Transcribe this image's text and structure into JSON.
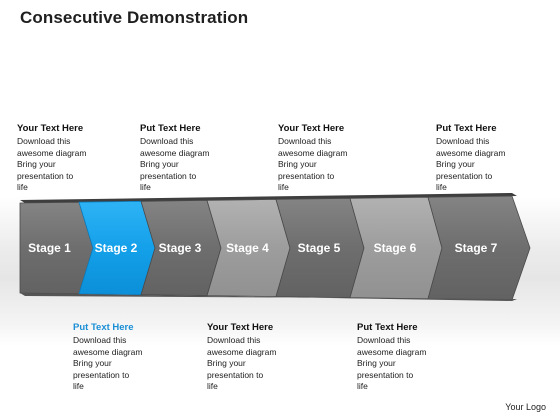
{
  "title": "Consecutive Demonstration",
  "stages": [
    "Stage 1",
    "Stage 2",
    "Stage 3",
    "Stage 4",
    "Stage 5",
    "Stage 6",
    "Stage 7"
  ],
  "top_blocks": [
    {
      "heading": "Your Text Here",
      "body": "Download this\nawesome diagram\nBring your\npresentation to\nlife"
    },
    {
      "heading": "Put Text Here",
      "body": "Download this\nawesome diagram\nBring your\npresentation to\nlife"
    },
    {
      "heading": "Your Text Here",
      "body": "Download this\nawesome diagram\nBring your\npresentation to\nlife"
    },
    {
      "heading": "Put Text Here",
      "body": "Download this\nawesome diagram\nBring your\npresentation to\nlife"
    }
  ],
  "bottom_blocks": [
    {
      "heading": "Put Text Here",
      "body": "Download this\nawesome diagram\nBring your\npresentation to\nlife"
    },
    {
      "heading": "Your Text Here",
      "body": "Download this\nawesome diagram\nBring your\npresentation to\nlife"
    },
    {
      "heading": "Put Text Here",
      "body": "Download this\nawesome diagram\nBring your\npresentation to\nlife"
    }
  ],
  "logo": "Your Logo",
  "colors": {
    "highlight": "#1aa3ee",
    "highlight_text": "#1a8fd6",
    "dark": "#6e6e6e",
    "light": "#9a9a9a"
  }
}
